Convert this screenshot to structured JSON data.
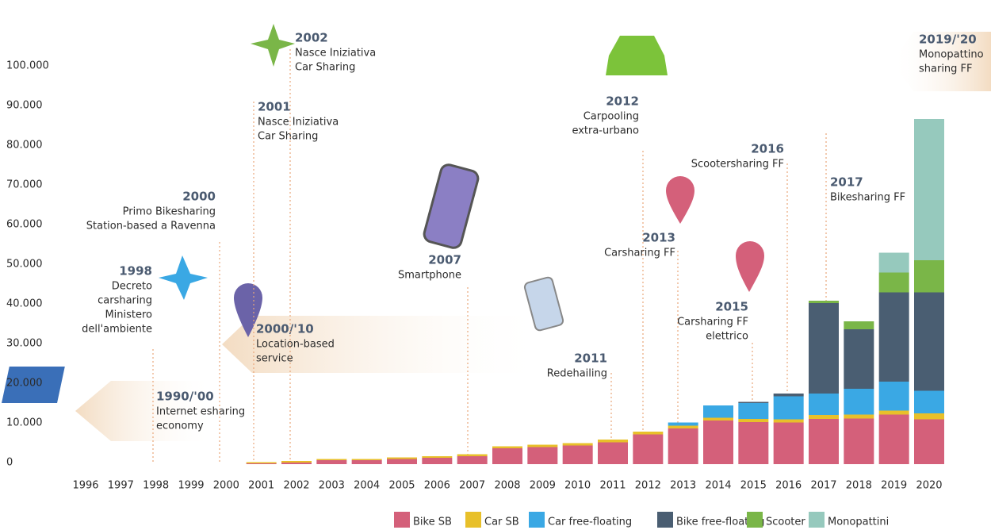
{
  "chart_data": {
    "type": "stacked_bar",
    "categories": [
      "1996",
      "1997",
      "1998",
      "1999",
      "2000",
      "2001",
      "2002",
      "2003",
      "2004",
      "2005",
      "2006",
      "2007",
      "2008",
      "2009",
      "2010",
      "2011",
      "2012",
      "2013",
      "2014",
      "2015",
      "2016",
      "2017",
      "2018",
      "2019",
      "2020"
    ],
    "series": [
      {
        "name": "Bike SB",
        "color": "#d4607a",
        "values": [
          0,
          0,
          0,
          0,
          0,
          200,
          400,
          1000,
          1000,
          1300,
          1600,
          2000,
          4000,
          4300,
          4700,
          5500,
          7500,
          9000,
          11000,
          10600,
          10500,
          11400,
          11500,
          12500,
          11300
        ]
      },
      {
        "name": "Car SB",
        "color": "#e8c02a",
        "values": [
          0,
          0,
          0,
          0,
          0,
          300,
          400,
          300,
          300,
          400,
          400,
          500,
          500,
          600,
          600,
          700,
          700,
          700,
          700,
          800,
          800,
          1000,
          1000,
          1000,
          1500
        ]
      },
      {
        "name": "Car free-floating",
        "color": "#3aa8e4",
        "values": [
          0,
          0,
          0,
          0,
          0,
          0,
          0,
          0,
          0,
          0,
          0,
          0,
          0,
          0,
          0,
          0,
          0,
          800,
          3100,
          4000,
          5800,
          5400,
          6500,
          7300,
          5700
        ]
      },
      {
        "name": "Bike free-floating",
        "color": "#4a5e72",
        "values": [
          0,
          0,
          0,
          0,
          0,
          0,
          0,
          0,
          0,
          0,
          0,
          0,
          0,
          0,
          0,
          0,
          0,
          0,
          0,
          300,
          700,
          22800,
          15000,
          22500,
          24800
        ]
      },
      {
        "name": "Scooter",
        "color": "#7ab648",
        "values": [
          0,
          0,
          0,
          0,
          0,
          0,
          0,
          0,
          0,
          0,
          0,
          0,
          0,
          0,
          0,
          0,
          0,
          0,
          0,
          0,
          0,
          600,
          2000,
          5000,
          8100
        ]
      },
      {
        "name": "Monopattini",
        "color": "#96c9bd",
        "values": [
          0,
          0,
          0,
          0,
          0,
          0,
          0,
          0,
          0,
          0,
          0,
          0,
          0,
          0,
          0,
          0,
          0,
          0,
          0,
          0,
          0,
          0,
          0,
          5000,
          35600
        ]
      }
    ],
    "ylim": [
      0,
      100000
    ],
    "yticks": [
      0,
      {
        "value": 10000,
        "label": "10.000"
      },
      {
        "value": 20000,
        "label": "20.000"
      },
      {
        "value": 30000,
        "label": "30.000"
      },
      {
        "value": 40000,
        "label": "40.000"
      },
      {
        "value": 50000,
        "label": "50.000"
      },
      {
        "value": 60000,
        "label": "60.000"
      },
      {
        "value": 70000,
        "label": "70.000"
      },
      {
        "value": 80000,
        "label": "80.000"
      },
      {
        "value": 90000,
        "label": "90.000"
      },
      {
        "value": 100000,
        "label": "100.000"
      }
    ],
    "grid": false,
    "legend": "bottom-right",
    "annotations": [
      {
        "title": "1990/'00",
        "lines": [
          "Internet esharing",
          "economy"
        ]
      },
      {
        "title": "1998",
        "lines": [
          "Decreto",
          "carsharing",
          "Ministero",
          "dell'ambiente"
        ]
      },
      {
        "title": "2000",
        "lines": [
          "Primo Bikesharing",
          "Station-based a Ravenna"
        ]
      },
      {
        "title": "2000/'10",
        "lines": [
          "Location-based",
          "service"
        ]
      },
      {
        "title": "2001",
        "lines": [
          "Nasce Iniziativa",
          "Car Sharing"
        ]
      },
      {
        "title": "2002",
        "lines": [
          "Nasce Iniziativa",
          "Car Sharing"
        ]
      },
      {
        "title": "2007",
        "lines": [
          "Smartphone"
        ]
      },
      {
        "title": "2011",
        "lines": [
          "Redehailing"
        ]
      },
      {
        "title": "2012",
        "lines": [
          "Carpooling",
          "extra-urbano"
        ]
      },
      {
        "title": "2013",
        "lines": [
          "Carsharing FF"
        ]
      },
      {
        "title": "2015",
        "lines": [
          "Carsharing FF",
          "elettrico"
        ]
      },
      {
        "title": "2016",
        "lines": [
          "Scootersharing FF"
        ]
      },
      {
        "title": "2017",
        "lines": [
          "Bikesharing FF"
        ]
      },
      {
        "title": "2019/'20",
        "lines": [
          "Monopattino",
          "sharing FF"
        ]
      }
    ]
  }
}
